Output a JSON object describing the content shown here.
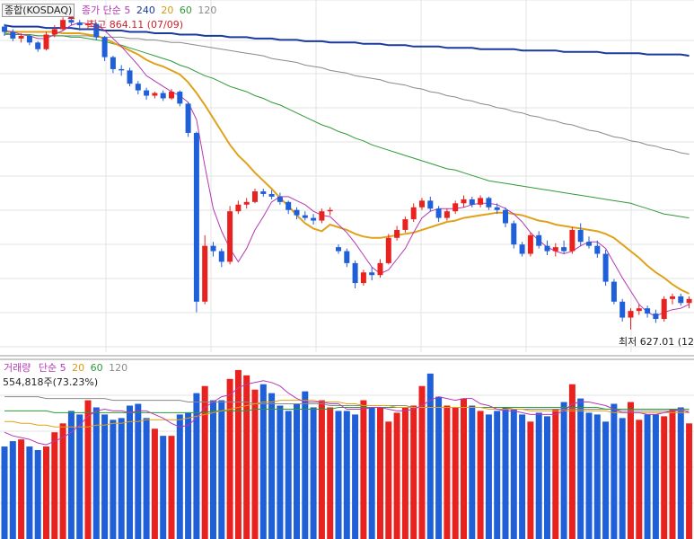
{
  "price_panel": {
    "index_name": "종합(KOSDAQ)",
    "ma_label": "종가 단순",
    "ma_periods": [
      "5",
      "240",
      "20",
      "60",
      "120"
    ],
    "high_label": "최고 864.11 (07/09)",
    "low_label": "최저 627.01 (12"
  },
  "volume_panel": {
    "title": "거래량",
    "ma_label": "단순",
    "ma_periods": [
      "5",
      "20",
      "60",
      "120"
    ],
    "current_value": "554,818주(73.23%)"
  },
  "colors": {
    "up": "#e8221f",
    "down": "#1f5fd8",
    "ma5": "#b43ab4",
    "ma20": "#e0a21a",
    "ma60": "#2e9a3a",
    "ma120": "#8a8a8a",
    "ma240": "#1a3aa0",
    "grid": "#e3e3e3"
  },
  "chart_data": {
    "type": "candlestick",
    "ylim": [
      610,
      875
    ],
    "high": 864.11,
    "low": 627.01,
    "candles": [
      [
        855,
        857,
        848,
        851
      ],
      [
        851,
        853,
        844,
        846
      ],
      [
        846,
        850,
        843,
        848
      ],
      [
        848,
        849,
        841,
        843
      ],
      [
        843,
        844,
        836,
        838
      ],
      [
        838,
        851,
        837,
        849
      ],
      [
        849,
        856,
        847,
        853
      ],
      [
        853,
        862,
        852,
        860
      ],
      [
        860,
        864.11,
        856,
        858
      ],
      [
        858,
        860,
        852,
        856
      ],
      [
        856,
        860,
        853,
        857
      ],
      [
        857,
        858,
        845,
        847
      ],
      [
        847,
        848,
        829,
        832
      ],
      [
        832,
        833,
        820,
        823
      ],
      [
        823,
        826,
        818,
        822
      ],
      [
        822,
        824,
        810,
        812
      ],
      [
        812,
        814,
        804,
        807
      ],
      [
        807,
        809,
        800,
        803
      ],
      [
        803,
        806,
        801,
        805
      ],
      [
        805,
        807,
        799,
        801
      ],
      [
        801,
        808,
        800,
        806
      ],
      [
        806,
        807,
        795,
        797
      ],
      [
        797,
        798,
        772,
        775
      ],
      [
        775,
        776,
        640,
        648
      ],
      [
        648,
        698,
        646,
        690
      ],
      [
        690,
        693,
        682,
        686
      ],
      [
        686,
        688,
        674,
        678
      ],
      [
        678,
        720,
        676,
        716
      ],
      [
        716,
        724,
        714,
        721
      ],
      [
        721,
        726,
        718,
        723
      ],
      [
        723,
        733,
        722,
        731
      ],
      [
        731,
        733,
        727,
        729
      ],
      [
        729,
        732,
        725,
        727
      ],
      [
        727,
        730,
        721,
        723
      ],
      [
        723,
        724,
        714,
        717
      ],
      [
        717,
        719,
        710,
        713
      ],
      [
        713,
        716,
        709,
        711
      ],
      [
        711,
        714,
        706,
        709
      ],
      [
        709,
        718,
        707,
        716
      ],
      [
        716,
        719,
        713,
        717
      ],
      [
        689,
        691,
        684,
        686
      ],
      [
        686,
        688,
        674,
        677
      ],
      [
        677,
        679,
        658,
        662
      ],
      [
        662,
        672,
        660,
        670
      ],
      [
        670,
        674,
        664,
        668
      ],
      [
        668,
        680,
        666,
        677
      ],
      [
        677,
        699,
        676,
        696
      ],
      [
        696,
        705,
        694,
        702
      ],
      [
        702,
        712,
        700,
        710
      ],
      [
        710,
        722,
        708,
        719
      ],
      [
        719,
        726,
        717,
        724
      ],
      [
        724,
        727,
        716,
        718
      ],
      [
        718,
        720,
        708,
        711
      ],
      [
        711,
        718,
        709,
        716
      ],
      [
        716,
        724,
        714,
        722
      ],
      [
        722,
        728,
        719,
        725
      ],
      [
        725,
        727,
        719,
        721
      ],
      [
        721,
        728,
        719,
        726
      ],
      [
        726,
        727,
        717,
        719
      ],
      [
        719,
        722,
        714,
        717
      ],
      [
        717,
        719,
        704,
        707
      ],
      [
        707,
        709,
        688,
        691
      ],
      [
        691,
        693,
        682,
        684
      ],
      [
        684,
        700,
        682,
        698
      ],
      [
        698,
        701,
        688,
        690
      ],
      [
        690,
        694,
        683,
        686
      ],
      [
        686,
        692,
        682,
        689
      ],
      [
        689,
        694,
        684,
        686
      ],
      [
        686,
        704,
        684,
        702
      ],
      [
        702,
        707,
        690,
        693
      ],
      [
        693,
        697,
        688,
        690
      ],
      [
        690,
        694,
        681,
        684
      ],
      [
        684,
        687,
        660,
        663
      ],
      [
        663,
        665,
        646,
        648
      ],
      [
        648,
        650,
        633,
        636
      ],
      [
        636,
        643,
        627.01,
        641
      ],
      [
        641,
        646,
        638,
        643
      ],
      [
        643,
        645,
        636,
        639
      ],
      [
        639,
        642,
        632,
        635
      ],
      [
        635,
        652,
        633,
        650
      ],
      [
        650,
        654,
        646,
        652
      ],
      [
        652,
        654,
        645,
        647
      ],
      [
        647,
        652,
        643,
        650
      ]
    ],
    "volume": [
      52,
      55,
      56,
      52,
      50,
      52,
      60,
      65,
      72,
      70,
      78,
      74,
      70,
      67,
      68,
      75,
      76,
      68,
      62,
      58,
      58,
      70,
      71,
      82,
      86,
      78,
      78,
      90,
      95,
      92,
      84,
      87,
      82,
      75,
      72,
      76,
      83,
      74,
      78,
      74,
      72,
      72,
      70,
      78,
      74,
      74,
      66,
      71,
      74,
      75,
      86,
      93,
      80,
      75,
      74,
      79,
      75,
      72,
      70,
      72,
      74,
      73,
      70,
      66,
      71,
      69,
      73,
      77,
      87,
      79,
      71,
      70,
      66,
      76,
      68,
      77,
      67,
      70,
      70,
      69,
      73,
      74,
      65
    ],
    "price_ma": {
      "ma5": [
        852,
        851,
        849,
        848,
        846,
        846,
        849,
        852,
        856,
        858,
        857,
        857,
        852,
        846,
        840,
        833,
        826,
        818,
        814,
        810,
        806,
        803,
        798,
        785,
        750,
        718,
        701,
        688,
        678,
        688,
        702,
        712,
        723,
        727,
        727,
        724,
        721,
        716,
        713,
        712,
        706,
        700,
        692,
        683,
        674,
        669,
        672,
        680,
        688,
        700,
        711,
        716,
        718,
        718,
        718,
        719,
        721,
        722,
        722,
        721,
        718,
        714,
        708,
        700,
        694,
        689,
        686,
        684,
        686,
        690,
        693,
        693,
        688,
        677,
        666,
        656,
        646,
        640,
        637,
        640,
        642,
        643,
        646
      ],
      "ma20": [
        851,
        851,
        851,
        851,
        851,
        851,
        851,
        850,
        850,
        850,
        849,
        848,
        846,
        843,
        840,
        837,
        834,
        830,
        827,
        825,
        822,
        819,
        813,
        805,
        796,
        786,
        776,
        766,
        758,
        752,
        745,
        739,
        733,
        726,
        720,
        713,
        707,
        703,
        701,
        706,
        704,
        702,
        699,
        697,
        696,
        696,
        697,
        698,
        699,
        700,
        702,
        704,
        706,
        708,
        709,
        711,
        712,
        713,
        714,
        715,
        715,
        714,
        713,
        711,
        709,
        708,
        706,
        705,
        704,
        703,
        702,
        701,
        699,
        696,
        691,
        686,
        681,
        675,
        670,
        666,
        661,
        657,
        654
      ],
      "ma60": [
        850,
        849,
        849,
        849,
        848,
        848,
        848,
        848,
        847,
        847,
        846,
        845,
        844,
        842,
        841,
        839,
        837,
        835,
        833,
        831,
        829,
        826,
        824,
        821,
        818,
        816,
        813,
        810,
        808,
        806,
        803,
        801,
        798,
        796,
        793,
        790,
        787,
        784,
        781,
        779,
        776,
        774,
        771,
        769,
        766,
        764,
        762,
        760,
        758,
        756,
        754,
        752,
        750,
        748,
        747,
        745,
        743,
        741,
        739,
        738,
        737,
        736,
        735,
        734,
        733,
        732,
        731,
        730,
        729,
        728,
        727,
        726,
        725,
        724,
        723,
        722,
        720,
        718,
        716,
        714,
        713,
        712,
        711
      ],
      "ma120": [
        849,
        849,
        849,
        849,
        848,
        848,
        848,
        848,
        848,
        848,
        848,
        847,
        847,
        847,
        847,
        846,
        846,
        845,
        845,
        844,
        843,
        843,
        842,
        841,
        840,
        839,
        838,
        837,
        836,
        835,
        834,
        833,
        831,
        830,
        829,
        828,
        826,
        825,
        824,
        822,
        821,
        820,
        818,
        817,
        816,
        815,
        813,
        812,
        811,
        809,
        808,
        806,
        805,
        803,
        802,
        800,
        799,
        797,
        796,
        794,
        793,
        791,
        790,
        788,
        787,
        785,
        784,
        782,
        781,
        779,
        777,
        776,
        774,
        772,
        771,
        769,
        768,
        766,
        765,
        763,
        762,
        760,
        759
      ],
      "ma240": [
        856,
        855,
        855,
        855,
        855,
        854,
        854,
        854,
        854,
        853,
        853,
        853,
        852,
        852,
        852,
        851,
        851,
        851,
        850,
        850,
        850,
        849,
        849,
        849,
        848,
        848,
        848,
        847,
        847,
        847,
        846,
        846,
        846,
        845,
        845,
        845,
        844,
        844,
        844,
        843,
        843,
        843,
        843,
        842,
        842,
        842,
        841,
        841,
        841,
        840,
        840,
        840,
        840,
        839,
        839,
        839,
        839,
        838,
        838,
        838,
        838,
        838,
        837,
        837,
        837,
        837,
        837,
        836,
        836,
        836,
        836,
        836,
        835,
        835,
        835,
        835,
        835,
        834,
        834,
        834,
        834,
        834,
        833
      ]
    },
    "volume_ma": {
      "ma5": [
        60,
        58,
        57,
        56,
        54,
        53,
        55,
        57,
        60,
        64,
        69,
        72,
        73,
        72,
        72,
        71,
        72,
        72,
        70,
        68,
        65,
        63,
        64,
        68,
        74,
        77,
        80,
        81,
        85,
        87,
        88,
        89,
        88,
        86,
        82,
        79,
        77,
        77,
        77,
        76,
        76,
        73,
        73,
        73,
        74,
        74,
        73,
        72,
        72,
        73,
        75,
        78,
        80,
        79,
        78,
        79,
        79,
        76,
        75,
        73,
        72,
        72,
        71,
        70,
        70,
        70,
        70,
        72,
        76,
        77,
        77,
        76,
        75,
        73,
        71,
        71,
        71,
        70,
        70,
        71,
        72,
        73,
        71
      ],
      "ma20": [
        66,
        66,
        65,
        65,
        64,
        64,
        63,
        63,
        63,
        63,
        63,
        64,
        64,
        65,
        65,
        66,
        66,
        67,
        67,
        67,
        67,
        67,
        68,
        69,
        70,
        71,
        72,
        73,
        74,
        75,
        76,
        77,
        77,
        78,
        78,
        78,
        78,
        78,
        77,
        77,
        77,
        76,
        76,
        75,
        75,
        75,
        75,
        74,
        74,
        74,
        74,
        74,
        74,
        74,
        74,
        74,
        74,
        74,
        73,
        73,
        73,
        73,
        73,
        72,
        72,
        72,
        72,
        72,
        72,
        72,
        72,
        72,
        72,
        71,
        71,
        71,
        71,
        71,
        71,
        71,
        71,
        71,
        71
      ],
      "ma60": [
        72,
        72,
        72,
        72,
        72,
        72,
        71,
        71,
        71,
        71,
        71,
        71,
        71,
        71,
        71,
        71,
        71,
        71,
        71,
        71,
        71,
        71,
        71,
        71,
        71,
        72,
        72,
        72,
        72,
        72,
        73,
        73,
        73,
        73,
        73,
        73,
        73,
        73,
        73,
        73,
        74,
        74,
        74,
        74,
        74,
        74,
        74,
        74,
        74,
        74,
        74,
        74,
        74,
        74,
        74,
        74,
        74,
        74,
        74,
        74,
        74,
        74,
        74,
        74,
        74,
        74,
        74,
        74,
        74,
        74,
        74,
        74,
        73,
        73,
        73,
        73,
        73,
        73,
        73,
        73,
        73,
        73,
        73
      ],
      "ma120": [
        80,
        80,
        80,
        80,
        80,
        79,
        79,
        79,
        79,
        79,
        79,
        79,
        79,
        78,
        78,
        78,
        78,
        78,
        78,
        78,
        78,
        78,
        77,
        77,
        77,
        77,
        77,
        77,
        77,
        77,
        76,
        76,
        76,
        76,
        76,
        76,
        76,
        76,
        76,
        75,
        75,
        75,
        75,
        75,
        75,
        75,
        75,
        75,
        75,
        74,
        74,
        74,
        74,
        74,
        74,
        74,
        74,
        74,
        74,
        74,
        74,
        73,
        73,
        73,
        73,
        73,
        73,
        73,
        73,
        73,
        73,
        73,
        73,
        73,
        72,
        72,
        72,
        72,
        72,
        72,
        72,
        72,
        72
      ]
    }
  }
}
